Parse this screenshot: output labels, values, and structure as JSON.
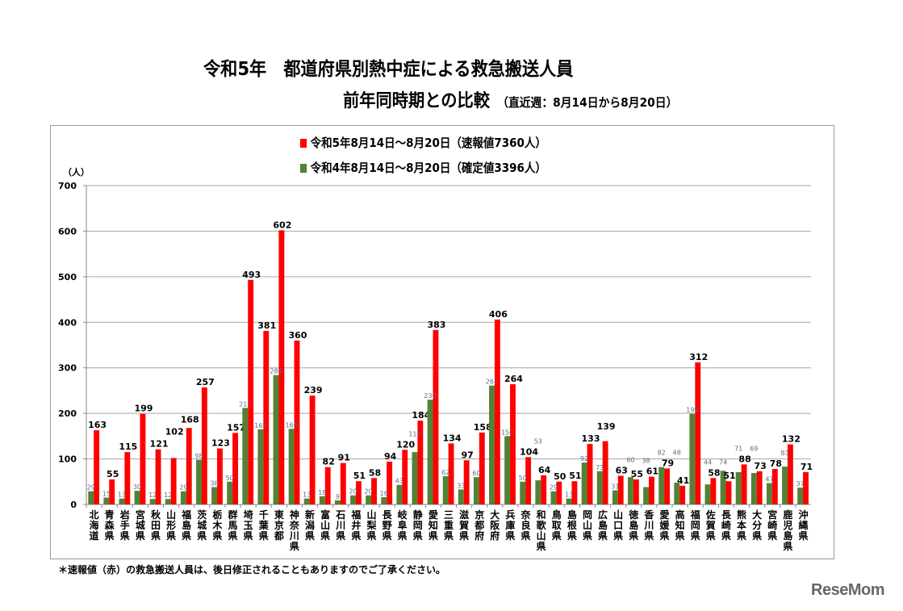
{
  "title_line1": "令和5年　都道府県別熱中症による救急搬送人員",
  "title_line2": "前年同時期との比較",
  "title_note": "（直近週：8月14日から8月20日）",
  "footnote": "＊速報値（赤）の救急搬送人員は、後日修正されることもありますのでご了承ください。",
  "logo": "ReseMom",
  "colors": {
    "current": "#ff0000",
    "previous": "#538135"
  },
  "chart_data": {
    "type": "bar",
    "title": "令和5年　都道府県別熱中症による救急搬送人員 前年同時期との比較",
    "ylabel": "（人）",
    "ylim": [
      0,
      700
    ],
    "yticks": [
      0,
      100,
      200,
      300,
      400,
      500,
      600,
      700
    ],
    "grid": true,
    "legend_position": "top-center",
    "categories": [
      "北海道",
      "青森県",
      "岩手県",
      "宮城県",
      "秋田県",
      "山形県",
      "福島県",
      "茨城県",
      "栃木県",
      "群馬県",
      "埼玉県",
      "千葉県",
      "東京都",
      "神奈川県",
      "新潟県",
      "富山県",
      "石川県",
      "福井県",
      "山梨県",
      "長野県",
      "岐阜県",
      "静岡県",
      "愛知県",
      "三重県",
      "滋賀県",
      "京都府",
      "大阪府",
      "兵庫県",
      "奈良県",
      "和歌山県",
      "鳥取県",
      "島根県",
      "岡山県",
      "広島県",
      "山口県",
      "徳島県",
      "香川県",
      "愛媛県",
      "高知県",
      "福岡県",
      "佐賀県",
      "長崎県",
      "熊本県",
      "大分県",
      "宮崎県",
      "鹿児島県",
      "沖縄県"
    ],
    "series": [
      {
        "name": "令和5年8月14日～8月20日（速報値7360人）",
        "color": "#ff0000",
        "values": [
          163,
          55,
          115,
          199,
          121,
          102,
          168,
          257,
          123,
          157,
          493,
          381,
          602,
          360,
          239,
          82,
          91,
          51,
          58,
          94,
          120,
          184,
          383,
          134,
          97,
          158,
          406,
          264,
          104,
          64,
          50,
          51,
          133,
          139,
          63,
          55,
          61,
          79,
          41,
          312,
          58,
          51,
          88,
          73,
          78,
          132,
          71
        ]
      },
      {
        "name": "令和4年8月14日～8月20日（確定値3396人）",
        "color": "#538135",
        "values": [
          29,
          15,
          13,
          30,
          12,
          12,
          29,
          98,
          38,
          50,
          212,
          165,
          284,
          166,
          13,
          18,
          9,
          20,
          20,
          16,
          43,
          115,
          230,
          62,
          33,
          60,
          261,
          150,
          50,
          53,
          29,
          13,
          92,
          73,
          31,
          60,
          38,
          82,
          48,
          199,
          44,
          74,
          71,
          69,
          47,
          83,
          37
        ]
      }
    ]
  }
}
